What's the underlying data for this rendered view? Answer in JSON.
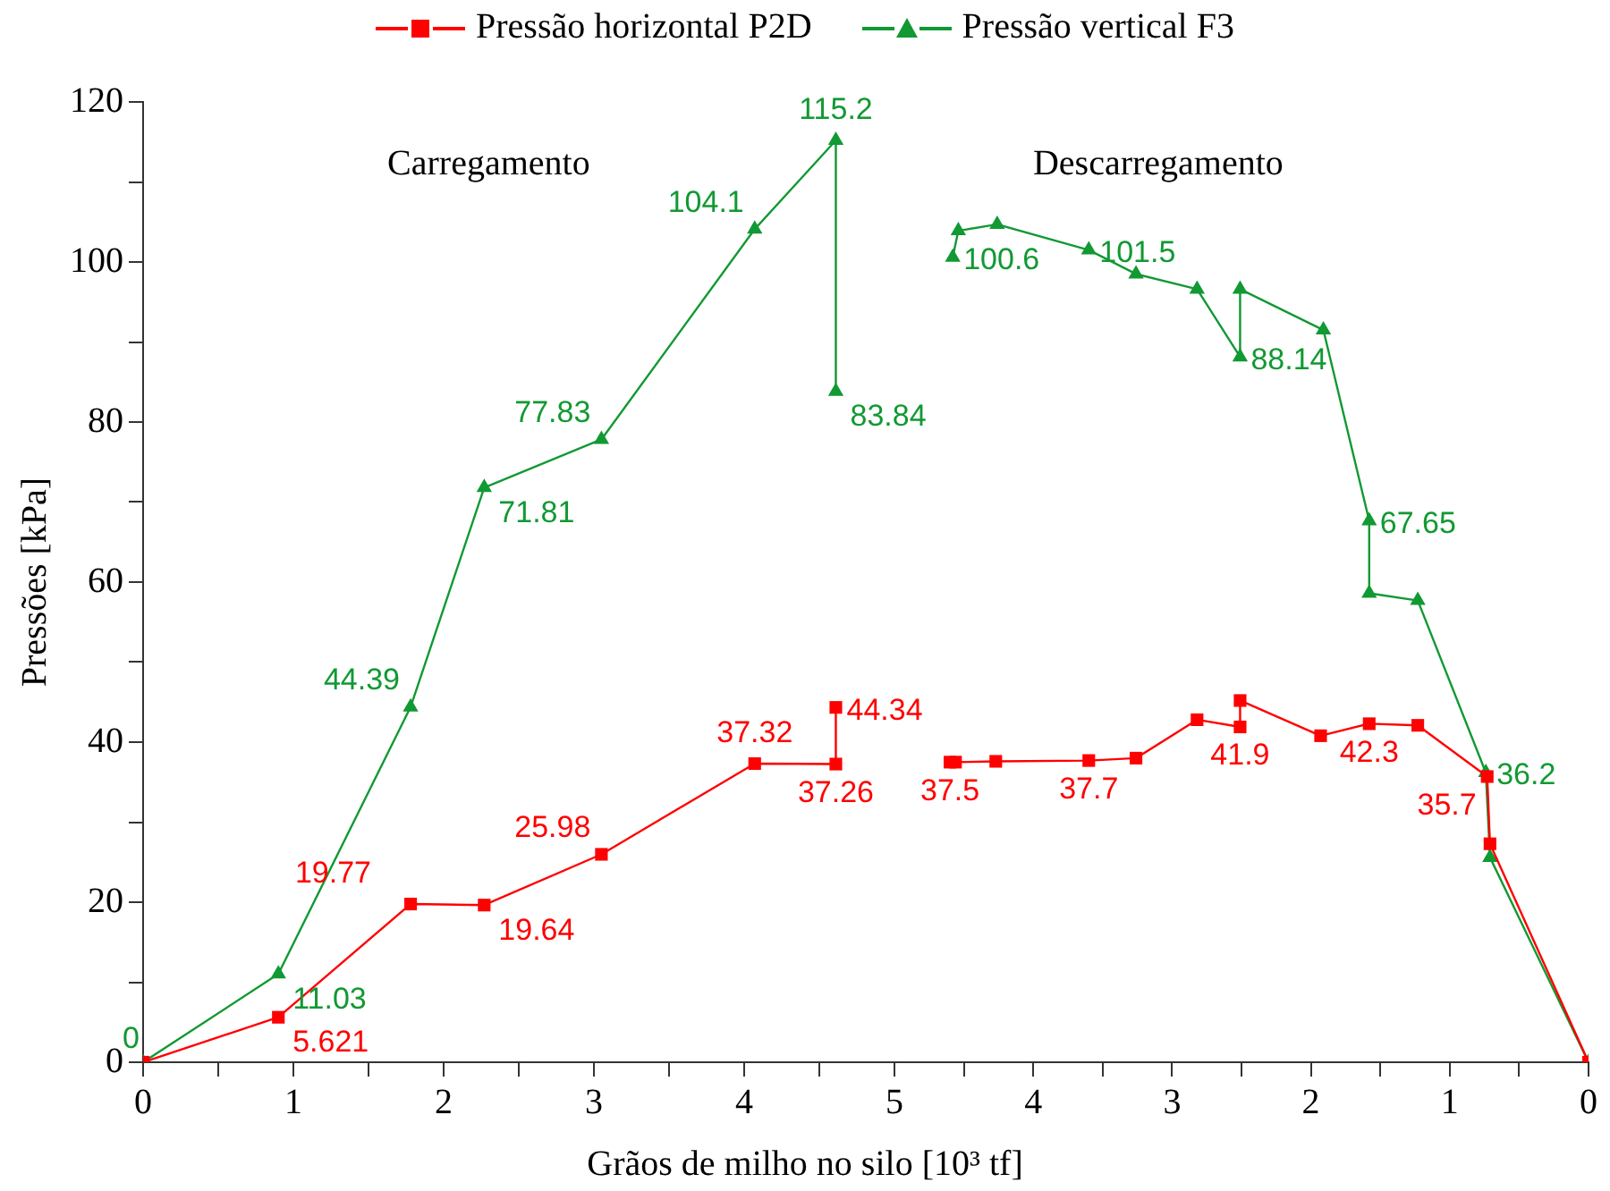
{
  "chart_data": [
    {
      "type": "line",
      "xlabel": "Grãos de milho no silo [10³ tf]",
      "ylabel": "Pressões [kPa]",
      "annotations": [
        "Carregamento"
      ],
      "xlim": [
        0,
        5
      ],
      "ylim": [
        0,
        120
      ],
      "xticks": [
        0,
        {
          "value": 0.5,
          "label": null
        },
        1,
        {
          "value": 1.5,
          "label": null
        },
        2,
        {
          "value": 2.5,
          "label": null
        },
        3,
        {
          "value": 3.5,
          "label": null
        },
        4,
        {
          "value": 4.5,
          "label": null
        },
        5
      ],
      "yticks": [
        0,
        {
          "value": 10,
          "label": null
        },
        20,
        {
          "value": 30,
          "label": null
        },
        40,
        {
          "value": 50,
          "label": null
        },
        60,
        {
          "value": 70,
          "label": null
        },
        80,
        {
          "value": 90,
          "label": null
        },
        100,
        {
          "value": 110,
          "label": null
        },
        120
      ],
      "legend": "top",
      "series": [
        {
          "name": "Pressão horizontal P2D",
          "color": "#ff0000",
          "marker": "square",
          "x": [
            0,
            0.9,
            1.78,
            2.27,
            3.05,
            4.07,
            4.61,
            4.61
          ],
          "values": [
            0,
            5.621,
            19.77,
            19.64,
            25.98,
            37.32,
            37.26,
            44.34
          ],
          "value_labels": [
            null,
            "5.621",
            "19.77",
            "19.64",
            "25.98",
            "37.32",
            "37.26",
            "44.34"
          ]
        },
        {
          "name": "Pressão vertical F3",
          "color": "#119933",
          "marker": "triangle",
          "x": [
            0,
            0.9,
            1.78,
            2.27,
            3.05,
            4.07,
            4.61,
            4.61
          ],
          "values": [
            0,
            11.03,
            44.39,
            71.81,
            77.83,
            104.1,
            115.2,
            83.84
          ],
          "value_labels": [
            "0",
            "11.03",
            "44.39",
            "71.81",
            "77.83",
            "104.1",
            "115.2",
            "83.84"
          ]
        }
      ]
    },
    {
      "type": "line",
      "annotations": [
        "Descarregamento"
      ],
      "xlim": [
        5,
        0
      ],
      "ylim": [
        0,
        120
      ],
      "tick_labels": "x",
      "xticks": [
        {
          "value": 5,
          "label": null
        },
        {
          "value": 4.5,
          "label": null
        },
        4,
        {
          "value": 3.5,
          "label": null
        },
        3,
        {
          "value": 2.5,
          "label": null
        },
        2,
        {
          "value": 1.5,
          "label": null
        },
        1,
        {
          "value": 0.5,
          "label": null
        },
        0
      ],
      "series": [
        {
          "color": "#ff0000",
          "marker": "square",
          "x": [
            4.6,
            4.56,
            4.27,
            3.6,
            3.26,
            2.82,
            2.51,
            2.51,
            1.93,
            1.58,
            1.23,
            0.73,
            0.71,
            0
          ],
          "values": [
            37.5,
            37.5,
            37.6,
            37.7,
            38,
            42.8,
            41.9,
            45.2,
            40.8,
            42.3,
            42.1,
            35.7,
            27.3,
            0
          ],
          "value_labels": [
            "37.5",
            null,
            null,
            "37.7",
            null,
            null,
            "41.9",
            null,
            null,
            "42.3",
            null,
            "35.7",
            null,
            null
          ]
        },
        {
          "color": "#119933",
          "marker": "triangle",
          "x": [
            4.58,
            4.54,
            4.26,
            3.6,
            3.26,
            2.82,
            2.51,
            2.51,
            1.91,
            1.58,
            1.58,
            1.23,
            0.74,
            0.71,
            0
          ],
          "values": [
            100.6,
            103.9,
            104.7,
            101.5,
            98.5,
            96.6,
            88.14,
            96.6,
            91.5,
            67.65,
            58.6,
            57.7,
            36.2,
            25.6,
            0
          ],
          "value_labels": [
            "100.6",
            null,
            null,
            "101.5",
            null,
            null,
            "88.14",
            null,
            null,
            "67.65",
            null,
            null,
            "36.2",
            null,
            null
          ]
        }
      ]
    }
  ]
}
